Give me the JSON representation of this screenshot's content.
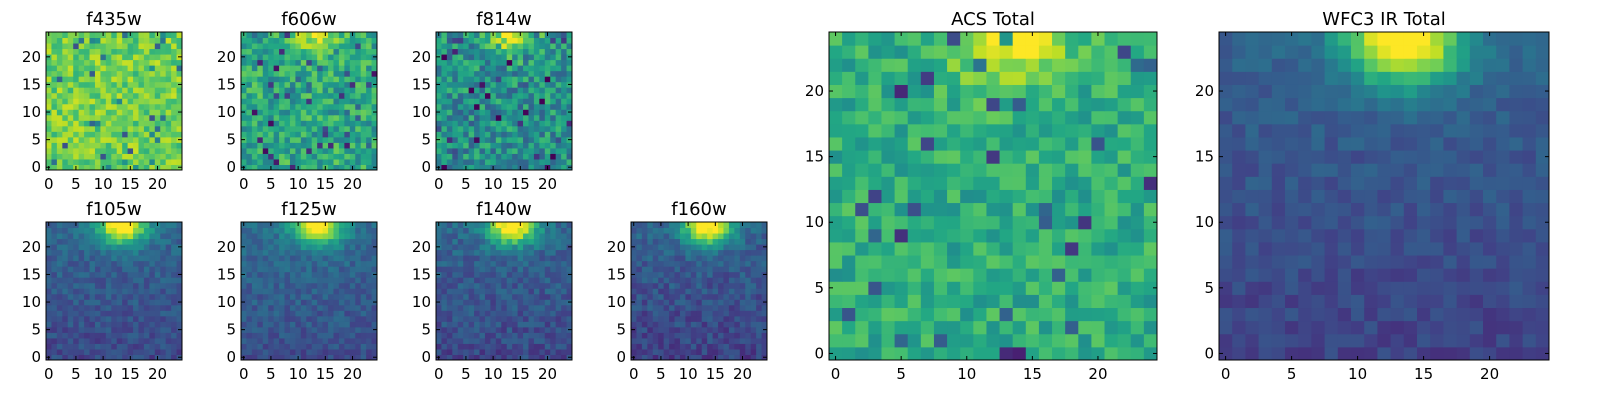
{
  "chart_data": [
    {
      "type": "heatmap",
      "title": "f435w",
      "colormap": "viridis",
      "grid_size": 25,
      "xlim": [
        0,
        24
      ],
      "ylim": [
        0,
        24
      ],
      "xticks": [
        0,
        5,
        10,
        15,
        20
      ],
      "yticks": [
        0,
        5,
        10,
        15,
        20
      ],
      "pattern": "noise",
      "seed": 11,
      "level": 0.78,
      "noise": 0.14,
      "blob_peak": 0.0
    },
    {
      "type": "heatmap",
      "title": "f606w",
      "colormap": "viridis",
      "grid_size": 25,
      "xlim": [
        0,
        24
      ],
      "ylim": [
        0,
        24
      ],
      "xticks": [
        0,
        5,
        10,
        15,
        20
      ],
      "yticks": [
        0,
        5,
        10,
        15,
        20
      ],
      "pattern": "noise",
      "seed": 23,
      "level": 0.6,
      "noise": 0.18,
      "blob_peak": 0.9
    },
    {
      "type": "heatmap",
      "title": "f814w",
      "colormap": "viridis",
      "grid_size": 25,
      "xlim": [
        0,
        24
      ],
      "ylim": [
        0,
        24
      ],
      "xticks": [
        0,
        5,
        10,
        15,
        20
      ],
      "yticks": [
        0,
        5,
        10,
        15,
        20
      ],
      "pattern": "noise",
      "seed": 37,
      "level": 0.5,
      "noise": 0.2,
      "blob_peak": 0.95
    },
    {
      "type": "heatmap",
      "title": "f105w",
      "colormap": "viridis",
      "grid_size": 25,
      "xlim": [
        0,
        24
      ],
      "ylim": [
        0,
        24
      ],
      "xticks": [
        0,
        5,
        10,
        15,
        20
      ],
      "yticks": [
        0,
        5,
        10,
        15,
        20
      ],
      "pattern": "blob",
      "seed": 41,
      "level": 0.22,
      "noise": 0.08,
      "blob_peak": 1.0
    },
    {
      "type": "heatmap",
      "title": "f125w",
      "colormap": "viridis",
      "grid_size": 25,
      "xlim": [
        0,
        24
      ],
      "ylim": [
        0,
        24
      ],
      "xticks": [
        0,
        5,
        10,
        15,
        20
      ],
      "yticks": [
        0,
        5,
        10,
        15,
        20
      ],
      "pattern": "blob",
      "seed": 53,
      "level": 0.24,
      "noise": 0.08,
      "blob_peak": 1.0
    },
    {
      "type": "heatmap",
      "title": "f140w",
      "colormap": "viridis",
      "grid_size": 25,
      "xlim": [
        0,
        24
      ],
      "ylim": [
        0,
        24
      ],
      "xticks": [
        0,
        5,
        10,
        15,
        20
      ],
      "yticks": [
        0,
        5,
        10,
        15,
        20
      ],
      "pattern": "blob",
      "seed": 67,
      "level": 0.22,
      "noise": 0.09,
      "blob_peak": 1.0
    },
    {
      "type": "heatmap",
      "title": "f160w",
      "colormap": "viridis",
      "grid_size": 25,
      "xlim": [
        0,
        24
      ],
      "ylim": [
        0,
        24
      ],
      "xticks": [
        0,
        5,
        10,
        15,
        20
      ],
      "yticks": [
        0,
        5,
        10,
        15,
        20
      ],
      "pattern": "blob",
      "seed": 79,
      "level": 0.2,
      "noise": 0.09,
      "blob_peak": 1.0
    },
    {
      "type": "heatmap",
      "title": "ACS Total",
      "colormap": "viridis",
      "grid_size": 25,
      "xlim": [
        0,
        24
      ],
      "ylim": [
        0,
        24
      ],
      "xticks": [
        0,
        5,
        10,
        15,
        20
      ],
      "yticks": [
        0,
        5,
        10,
        15,
        20
      ],
      "pattern": "noise",
      "seed": 97,
      "level": 0.62,
      "noise": 0.13,
      "blob_peak": 1.0
    },
    {
      "type": "heatmap",
      "title": "WFC3 IR Total",
      "colormap": "viridis",
      "grid_size": 25,
      "xlim": [
        0,
        24
      ],
      "ylim": [
        0,
        24
      ],
      "xticks": [
        0,
        5,
        10,
        15,
        20
      ],
      "yticks": [
        0,
        5,
        10,
        15,
        20
      ],
      "pattern": "blob",
      "seed": 113,
      "level": 0.2,
      "noise": 0.06,
      "blob_peak": 1.0
    }
  ]
}
